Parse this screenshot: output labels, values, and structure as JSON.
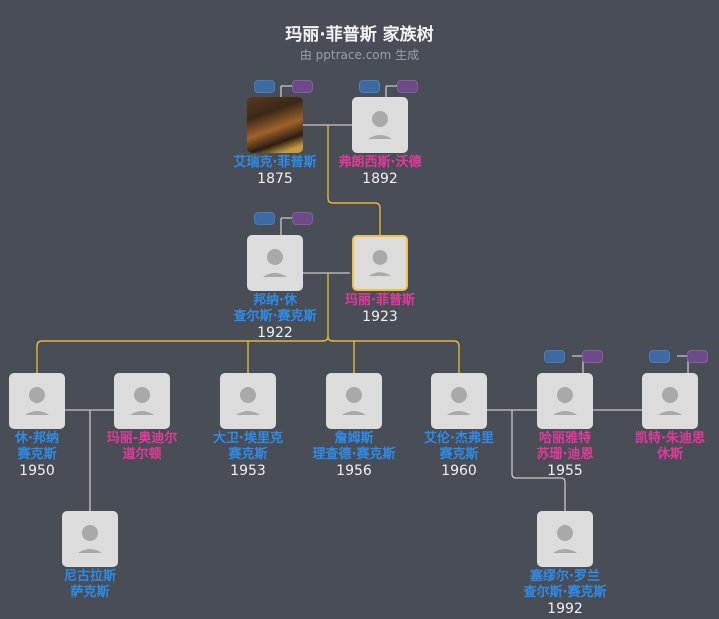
{
  "header": {
    "title": "玛丽·菲普斯 家族树",
    "subtitle": "由 pptrace.com 生成"
  },
  "colors": {
    "male": "#2f8be6",
    "female": "#e23a9a",
    "highlight": "#f0c040",
    "line": "#c8c8c8",
    "background": "#484d56"
  },
  "people": [
    {
      "id": "eric",
      "name": [
        "艾瑞克·菲普斯"
      ],
      "year": "1875",
      "gender": "m",
      "photo": true
    },
    {
      "id": "frances",
      "name": [
        "弗朗西斯·沃德"
      ],
      "year": "1892",
      "gender": "f"
    },
    {
      "id": "bonar",
      "name": [
        "邦纳·休",
        "查尔斯·赛克斯"
      ],
      "year": "1922",
      "gender": "m"
    },
    {
      "id": "mary",
      "name": [
        "玛丽·菲普斯"
      ],
      "year": "1923",
      "gender": "f",
      "selected": true
    },
    {
      "id": "hugh",
      "name": [
        "休·邦纳",
        "赛克斯"
      ],
      "year": "1950",
      "gender": "m"
    },
    {
      "id": "mary-odell",
      "name": [
        "玛丽-奥迪尔",
        "道尔顿"
      ],
      "year": "",
      "gender": "f"
    },
    {
      "id": "david",
      "name": [
        "大卫·埃里克",
        "赛克斯"
      ],
      "year": "1953",
      "gender": "m"
    },
    {
      "id": "james",
      "name": [
        "詹姆斯",
        "理查德·赛克斯"
      ],
      "year": "1956",
      "gender": "m"
    },
    {
      "id": "alan",
      "name": [
        "艾伦·杰弗里",
        "赛克斯"
      ],
      "year": "1960",
      "gender": "m"
    },
    {
      "id": "harriet",
      "name": [
        "哈丽雅特",
        "苏珊·迪恩"
      ],
      "year": "1955",
      "gender": "f"
    },
    {
      "id": "kate",
      "name": [
        "凯特·朱迪思",
        "休斯"
      ],
      "year": "",
      "gender": "f"
    },
    {
      "id": "nicholas",
      "name": [
        "尼古拉斯",
        "萨克斯"
      ],
      "year": "",
      "gender": "m"
    },
    {
      "id": "samuel",
      "name": [
        "塞缪尔·罗兰",
        "查尔斯·赛克斯"
      ],
      "year": "1992",
      "gender": "m"
    }
  ]
}
